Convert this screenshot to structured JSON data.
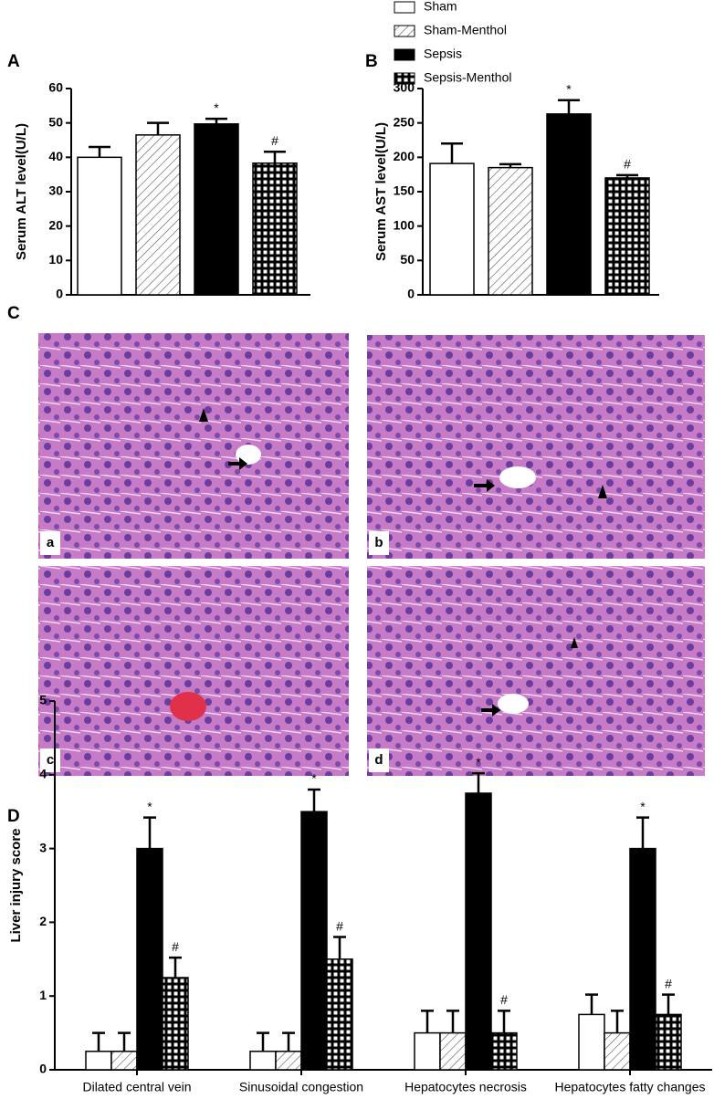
{
  "chart_data": [
    {
      "type": "bar",
      "panel_label": "A",
      "y_label": "Serum ALT level(U/L)",
      "ylim": [
        0,
        60
      ],
      "yticks": [
        0,
        10,
        20,
        30,
        40,
        50,
        60
      ],
      "legend": "top-right",
      "series": [
        {
          "name": "Sham",
          "color": "#ffffff",
          "pattern": "none",
          "values": [
            40
          ],
          "errors": [
            3
          ]
        },
        {
          "name": "Sham-Menthol",
          "color": "#ffffff",
          "pattern": "hatch",
          "values": [
            46.5
          ],
          "errors": [
            3.5
          ]
        },
        {
          "name": "Sepsis",
          "color": "#000000",
          "pattern": "solid",
          "values": [
            49.7
          ],
          "errors": [
            1.5
          ],
          "annotations": [
            "*"
          ]
        },
        {
          "name": "Sepsis-Menthol",
          "color": "#ffffff",
          "pattern": "grid",
          "values": [
            38.3
          ],
          "errors": [
            3.3
          ],
          "annotations": [
            "#"
          ]
        }
      ]
    },
    {
      "type": "bar",
      "panel_label": "B",
      "y_label": "Serum AST level(U/L)",
      "ylim": [
        0,
        300
      ],
      "yticks": [
        0,
        50,
        100,
        150,
        200,
        250,
        300
      ],
      "series": [
        {
          "color": "#ffffff",
          "pattern": "none",
          "values": [
            191
          ],
          "errors": [
            29
          ]
        },
        {
          "color": "#ffffff",
          "pattern": "hatch",
          "values": [
            185
          ],
          "errors": [
            5
          ]
        },
        {
          "color": "#000000",
          "pattern": "solid",
          "values": [
            263
          ],
          "errors": [
            20
          ],
          "annotations": [
            "*"
          ]
        },
        {
          "color": "#ffffff",
          "pattern": "grid",
          "values": [
            170
          ],
          "errors": [
            4
          ],
          "annotations": [
            "#"
          ]
        }
      ]
    },
    {
      "type": "bar",
      "panel_label": "D",
      "y_label": "Liver injury score",
      "categories": [
        "Dilated central vein",
        "Sinusoidal congestion",
        "Hepatocytes necrosis",
        "Hepatocytes fatty changes"
      ],
      "ylim": [
        0,
        5
      ],
      "yticks": [
        0,
        1,
        2,
        3,
        4,
        5
      ],
      "series": [
        {
          "color": "#ffffff",
          "pattern": "none",
          "values": [
            0.25,
            0.25,
            0.5,
            0.75
          ],
          "errors": [
            0.25,
            0.25,
            0.3,
            0.27
          ]
        },
        {
          "color": "#ffffff",
          "pattern": "hatch",
          "values": [
            0.25,
            0.25,
            0.5,
            0.5
          ],
          "errors": [
            0.25,
            0.25,
            0.3,
            0.3
          ]
        },
        {
          "color": "#000000",
          "pattern": "solid",
          "values": [
            3,
            3.5,
            3.75,
            3
          ],
          "errors": [
            0.42,
            0.3,
            0.27,
            0.42
          ],
          "annotations": [
            "*",
            "*",
            "*",
            "*"
          ]
        },
        {
          "color": "#ffffff",
          "pattern": "grid",
          "values": [
            1.25,
            1.5,
            0.5,
            0.75
          ],
          "errors": [
            0.27,
            0.3,
            0.3,
            0.27
          ],
          "annotations": [
            "#",
            "#",
            "#",
            "#"
          ]
        }
      ]
    }
  ],
  "histology": {
    "panel_label": "C",
    "images": [
      "a",
      "b",
      "c",
      "d"
    ]
  }
}
